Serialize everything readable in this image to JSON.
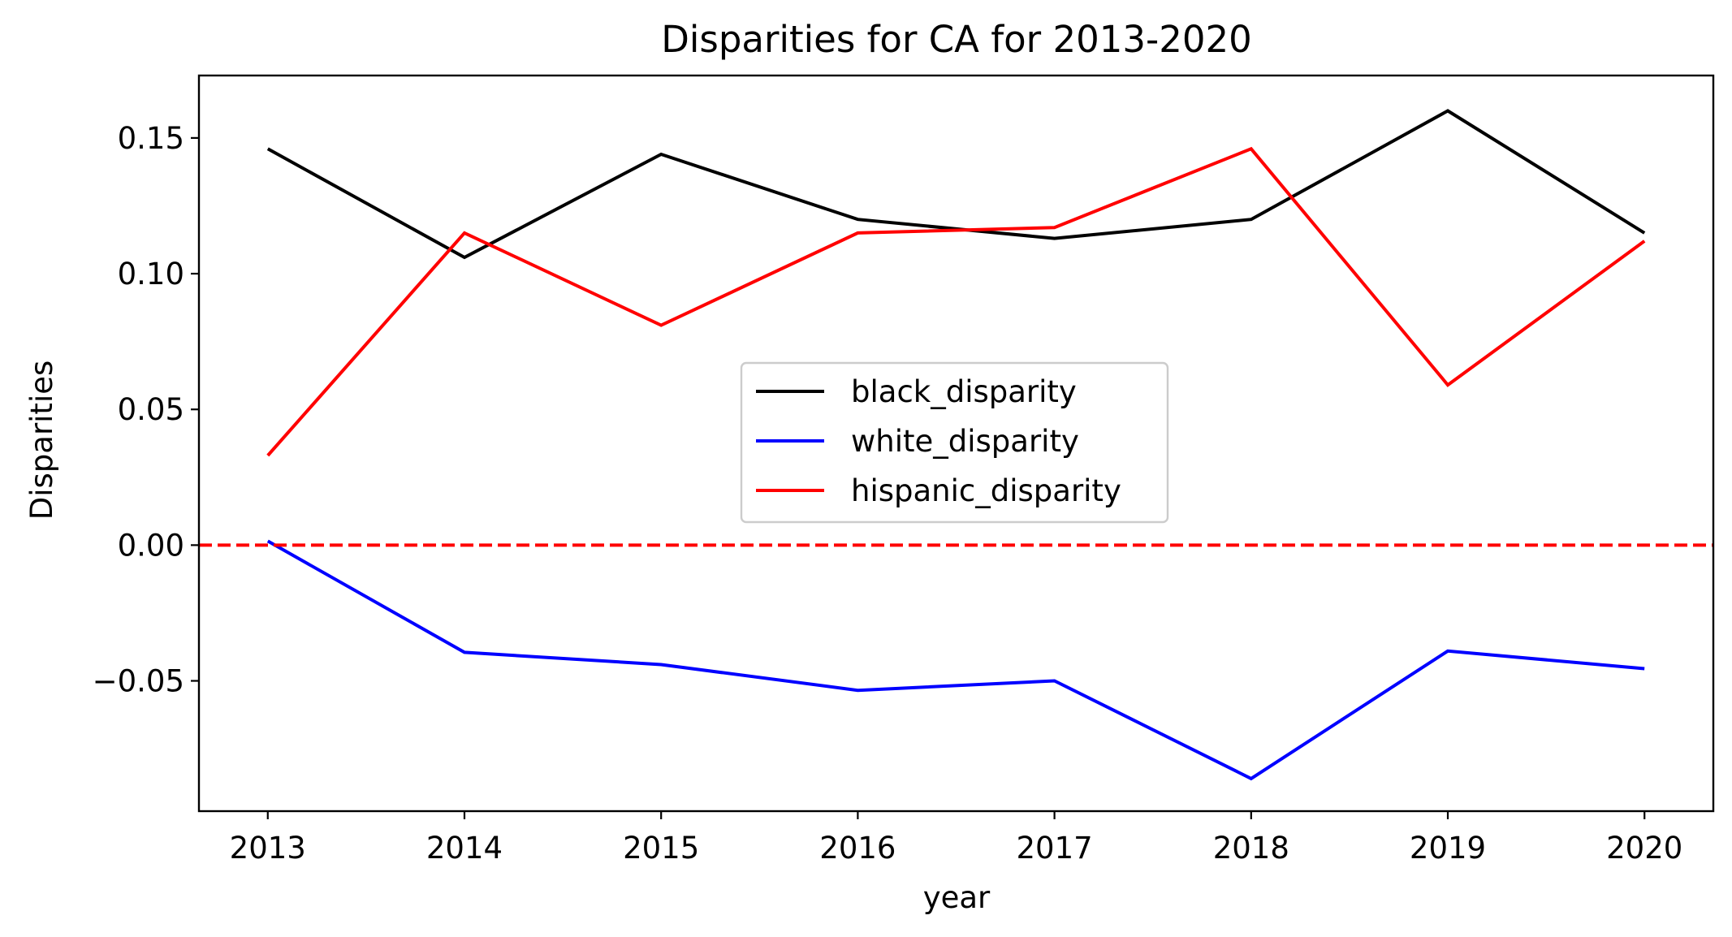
{
  "chart_data": {
    "type": "line",
    "title": "Disparities for CA for 2013-2020",
    "xlabel": "year",
    "ylabel": "Disparities",
    "x": [
      2013,
      2014,
      2015,
      2016,
      2017,
      2018,
      2019,
      2020
    ],
    "x_tick_labels": [
      "2013",
      "2014",
      "2015",
      "2016",
      "2017",
      "2018",
      "2019",
      "2020"
    ],
    "y_ticks": [
      -0.05,
      0.0,
      0.05,
      0.1,
      0.15
    ],
    "y_tick_labels": [
      "−0.05",
      "0.00",
      "0.05",
      "0.10",
      "0.15"
    ],
    "xlim": [
      2012.65,
      2020.35
    ],
    "ylim": [
      -0.098,
      0.173
    ],
    "grid": false,
    "legend_position": "center",
    "series": [
      {
        "name": "black_disparity",
        "color": "#000000",
        "values": [
          0.146,
          0.106,
          0.144,
          0.12,
          0.113,
          0.12,
          0.16,
          0.115
        ]
      },
      {
        "name": "white_disparity",
        "color": "#0000ff",
        "values": [
          0.0015,
          -0.0395,
          -0.044,
          -0.0535,
          -0.05,
          -0.086,
          -0.039,
          -0.0455
        ]
      },
      {
        "name": "hispanic_disparity",
        "color": "#ff0000",
        "values": [
          0.033,
          0.115,
          0.081,
          0.115,
          0.117,
          0.146,
          0.059,
          0.112
        ]
      }
    ],
    "reference_line": {
      "y": 0.0,
      "color": "#ff0000",
      "style": "dashed"
    }
  }
}
